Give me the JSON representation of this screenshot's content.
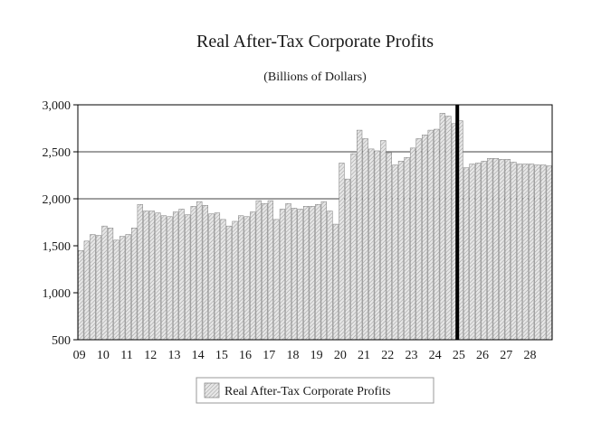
{
  "chart_data": {
    "type": "bar",
    "title": "Real After-Tax Corporate Profits",
    "subtitle": "(Billions of Dollars)",
    "xlabel": "",
    "ylabel": "",
    "ylim": [
      500,
      3000
    ],
    "y_ticks": [
      "500",
      "1,000",
      "1,500",
      "2,000",
      "2,500",
      "3,000"
    ],
    "y_tick_values": [
      500,
      1000,
      1500,
      2000,
      2500,
      3000
    ],
    "gridlines": [
      2000,
      2500
    ],
    "x_tick_labels": [
      "09",
      "10",
      "11",
      "12",
      "13",
      "14",
      "15",
      "16",
      "17",
      "18",
      "19",
      "20",
      "21",
      "22",
      "23",
      "24",
      "25",
      "26",
      "27",
      "28"
    ],
    "forecast_marker_index": 64,
    "series": [
      {
        "name": "Real After-Tax Corporate Profits",
        "color": "#d0d0d0",
        "values": [
          1450,
          1550,
          1620,
          1610,
          1710,
          1690,
          1560,
          1600,
          1620,
          1690,
          1940,
          1870,
          1870,
          1850,
          1820,
          1810,
          1860,
          1890,
          1830,
          1920,
          1970,
          1930,
          1840,
          1850,
          1780,
          1710,
          1760,
          1820,
          1810,
          1860,
          1980,
          1950,
          1980,
          1780,
          1890,
          1950,
          1900,
          1890,
          1920,
          1920,
          1940,
          1970,
          1870,
          1730,
          2380,
          2210,
          2480,
          2730,
          2640,
          2530,
          2510,
          2620,
          2490,
          2360,
          2400,
          2440,
          2540,
          2640,
          2680,
          2730,
          2740,
          2910,
          2880,
          2800,
          2830,
          2330,
          2370,
          2380,
          2400,
          2430,
          2430,
          2420,
          2420,
          2390,
          2370,
          2370,
          2370,
          2360,
          2360,
          2350
        ]
      }
    ],
    "legend": {
      "position": "bottom-center",
      "label": "Real After-Tax Corporate Profits"
    }
  }
}
